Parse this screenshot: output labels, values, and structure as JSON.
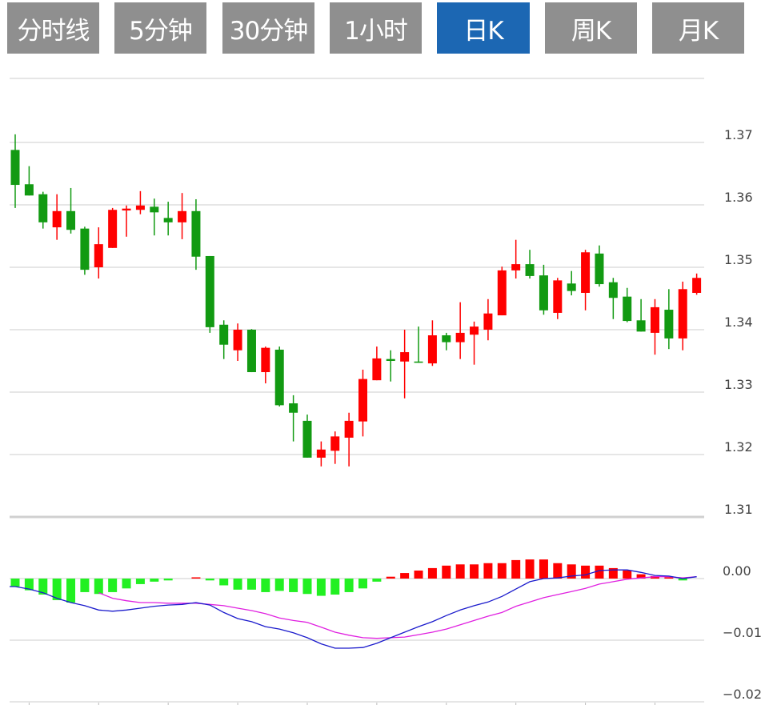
{
  "tabs": [
    {
      "label": "分时线",
      "active": false
    },
    {
      "label": "5分钟",
      "active": false
    },
    {
      "label": "30分钟",
      "active": false
    },
    {
      "label": "1小时",
      "active": false
    },
    {
      "label": "日K",
      "active": true
    },
    {
      "label": "周K",
      "active": false
    },
    {
      "label": "月K",
      "active": false
    }
  ],
  "colors": {
    "up": "#ff0000",
    "down": "#129a12",
    "hist_up": "#ff0000",
    "hist_down": "#22f022",
    "dif": "#1a1acc",
    "dea": "#e020e0",
    "tab": "#8f8f8f",
    "tab_active": "#1c67b3"
  },
  "chart_data": [
    {
      "type": "candlestick",
      "title": "",
      "yticks": [
        "1.37",
        "1.36",
        "1.35",
        "1.34",
        "1.33",
        "1.32",
        "1.31"
      ],
      "yticks_values": [
        1.37,
        1.36,
        1.35,
        1.34,
        1.33,
        1.32,
        1.31
      ],
      "ylim": [
        1.31,
        1.38
      ],
      "grid": true,
      "ohlc": [
        [
          1.3688,
          1.3713,
          1.3595,
          1.3632
        ],
        [
          1.3633,
          1.3662,
          1.3615,
          1.3615
        ],
        [
          1.3617,
          1.3621,
          1.3562,
          1.3572
        ],
        [
          1.3564,
          1.3617,
          1.3544,
          1.359
        ],
        [
          1.359,
          1.3627,
          1.3554,
          1.356
        ],
        [
          1.3562,
          1.3565,
          1.3488,
          1.3496
        ],
        [
          1.35,
          1.3564,
          1.3482,
          1.3537
        ],
        [
          1.3531,
          1.3595,
          1.3531,
          1.3592
        ],
        [
          1.3591,
          1.3599,
          1.3549,
          1.3594
        ],
        [
          1.3592,
          1.3622,
          1.3585,
          1.3599
        ],
        [
          1.3597,
          1.361,
          1.3551,
          1.3588
        ],
        [
          1.3579,
          1.3605,
          1.3551,
          1.3572
        ],
        [
          1.3572,
          1.3619,
          1.3545,
          1.359
        ],
        [
          1.359,
          1.3609,
          1.3496,
          1.3517
        ],
        [
          1.3518,
          1.3518,
          1.3395,
          1.3404
        ],
        [
          1.3408,
          1.3415,
          1.3353,
          1.3376
        ],
        [
          1.3367,
          1.341,
          1.335,
          1.34
        ],
        [
          1.34,
          1.3401,
          1.3332,
          1.3332
        ],
        [
          1.3332,
          1.3373,
          1.3314,
          1.3371
        ],
        [
          1.3368,
          1.3373,
          1.3277,
          1.3279
        ],
        [
          1.3282,
          1.3295,
          1.3221,
          1.3267
        ],
        [
          1.3254,
          1.3264,
          1.3195,
          1.3195
        ],
        [
          1.3195,
          1.3221,
          1.3181,
          1.3208
        ],
        [
          1.3206,
          1.3237,
          1.3185,
          1.3229
        ],
        [
          1.3227,
          1.3267,
          1.3181,
          1.3254
        ],
        [
          1.3253,
          1.3336,
          1.3229,
          1.3321
        ],
        [
          1.3319,
          1.3373,
          1.3319,
          1.3354
        ],
        [
          1.3353,
          1.3367,
          1.3317,
          1.335
        ],
        [
          1.3349,
          1.34,
          1.329,
          1.3364
        ],
        [
          1.3349,
          1.3405,
          1.3347,
          1.3347
        ],
        [
          1.3346,
          1.3415,
          1.3342,
          1.3391
        ],
        [
          1.3391,
          1.3395,
          1.3367,
          1.338
        ],
        [
          1.338,
          1.3444,
          1.3353,
          1.3395
        ],
        [
          1.3392,
          1.3413,
          1.3344,
          1.3405
        ],
        [
          1.34,
          1.3449,
          1.3383,
          1.3426
        ],
        [
          1.3423,
          1.3501,
          1.3423,
          1.3495
        ],
        [
          1.3495,
          1.3544,
          1.3482,
          1.3505
        ],
        [
          1.3505,
          1.3528,
          1.3482,
          1.3486
        ],
        [
          1.3487,
          1.3504,
          1.3424,
          1.3431
        ],
        [
          1.3427,
          1.3483,
          1.3417,
          1.3479
        ],
        [
          1.3474,
          1.3494,
          1.3455,
          1.3462
        ],
        [
          1.3459,
          1.3528,
          1.3431,
          1.3524
        ],
        [
          1.3522,
          1.3535,
          1.3469,
          1.3473
        ],
        [
          1.3476,
          1.3483,
          1.3417,
          1.3451
        ],
        [
          1.3453,
          1.3467,
          1.3412,
          1.3414
        ],
        [
          1.3415,
          1.3449,
          1.3397,
          1.3397
        ],
        [
          1.3395,
          1.3449,
          1.336,
          1.3436
        ],
        [
          1.3432,
          1.3465,
          1.3369,
          1.3386
        ],
        [
          1.3386,
          1.3477,
          1.3367,
          1.3465
        ],
        [
          1.3459,
          1.349,
          1.3456,
          1.3483
        ]
      ]
    },
    {
      "type": "macd",
      "yticks": [
        "0.00",
        "−0.01",
        "−0.02"
      ],
      "yticks_values": [
        0,
        -0.01,
        -0.02
      ],
      "grid": true,
      "histogram": [
        -0.0013,
        -0.0019,
        -0.0026,
        -0.0035,
        -0.0039,
        -0.0022,
        -0.0025,
        -0.0022,
        -0.0016,
        -0.0009,
        -0.0005,
        -0.0003,
        0,
        0.0002,
        -0.0003,
        -0.0011,
        -0.0018,
        -0.0018,
        -0.0022,
        -0.002,
        -0.0022,
        -0.0025,
        -0.0028,
        -0.0026,
        -0.0022,
        -0.0016,
        -0.0005,
        0.0003,
        0.0009,
        0.0013,
        0.0017,
        0.0021,
        0.0023,
        0.0023,
        0.0025,
        0.0025,
        0.003,
        0.0031,
        0.0031,
        0.0025,
        0.0023,
        0.0021,
        0.0021,
        0.0017,
        0.0013,
        0.0007,
        0.0004,
        0.0002,
        -0.0003,
        0
      ],
      "dif": [
        -0.0013,
        -0.0017,
        -0.0023,
        -0.0032,
        -0.0039,
        -0.0044,
        -0.0051,
        -0.0053,
        -0.0051,
        -0.0048,
        -0.0045,
        -0.0043,
        -0.0042,
        -0.0039,
        -0.0043,
        -0.0055,
        -0.0065,
        -0.007,
        -0.0078,
        -0.0082,
        -0.0088,
        -0.0096,
        -0.0106,
        -0.0113,
        -0.0113,
        -0.0112,
        -0.0105,
        -0.0096,
        -0.0087,
        -0.0078,
        -0.007,
        -0.006,
        -0.0051,
        -0.0044,
        -0.0038,
        -0.0029,
        -0.0017,
        -0.0005,
        0.0,
        0.0001,
        0.0004,
        0.0006,
        0.0013,
        0.0014,
        0.0014,
        0.001,
        0.0005,
        0.0004,
        0.0,
        0.0003
      ],
      "dea": [
        null,
        null,
        null,
        null,
        null,
        null,
        -0.0023,
        -0.0032,
        -0.0036,
        -0.0039,
        -0.0039,
        -0.004,
        -0.004,
        -0.004,
        -0.0042,
        -0.0044,
        -0.0048,
        -0.0052,
        -0.0057,
        -0.0064,
        -0.0068,
        -0.0071,
        -0.0079,
        -0.0087,
        -0.0092,
        -0.0096,
        -0.0097,
        -0.0096,
        -0.0095,
        -0.0091,
        -0.0087,
        -0.0082,
        -0.0075,
        -0.0068,
        -0.0061,
        -0.0055,
        -0.0045,
        -0.0038,
        -0.0031,
        -0.0026,
        -0.0021,
        -0.0016,
        -0.0009,
        -0.0005,
        -0.0001,
        0.0001,
        0.0003,
        0.0003,
        0.0001,
        0.0003
      ]
    }
  ]
}
